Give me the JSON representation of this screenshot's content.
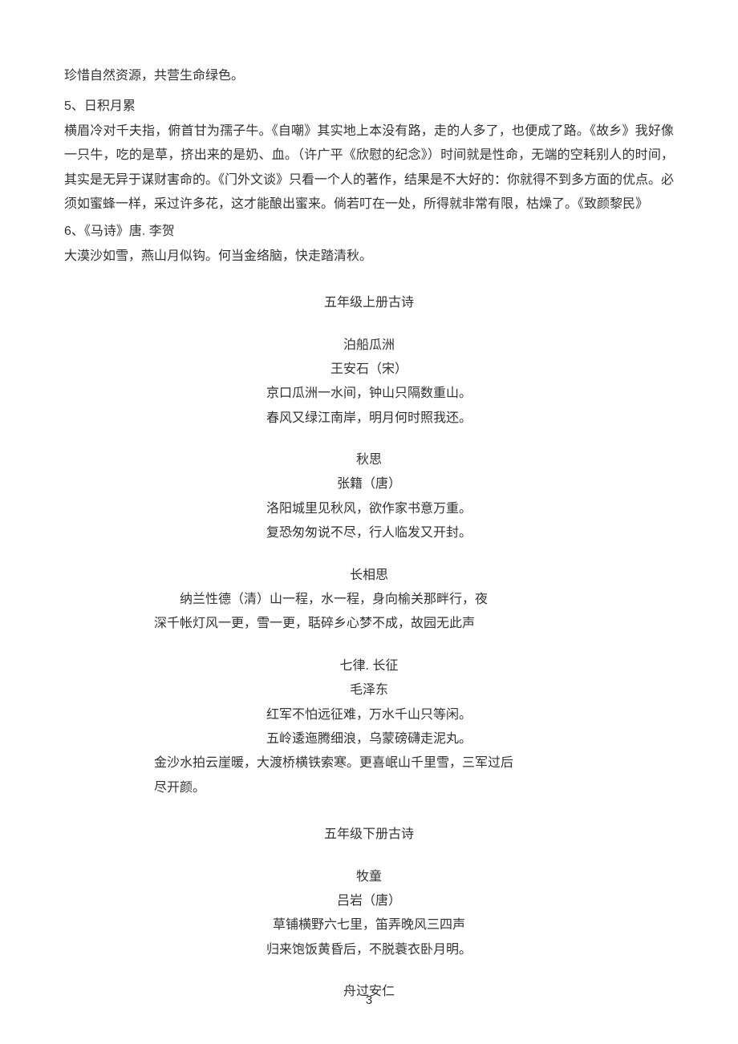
{
  "top_line": "珍惜自然资源，共营生命绿色。",
  "sec5": {
    "heading": "5、日积月累",
    "body": "横眉冷对千夫指，俯首甘为孺子牛。《自嘲》其实地上本没有路，走的人多了，也便成了路。《故乡》我好像一只牛，吃的是草，挤出来的是奶、血。（许广平《欣慰的纪念》）时间就是性命，无端的空耗别人的时间，其实是无异于谋财害命的。《门外文谈》只看一个人的著作，结果是不大好的：你就得不到多方面的优点。必须如蜜蜂一样，采过许多花，这才能酿出蜜来。倘若叮在一处，所得就非常有限，枯燥了。《致颜黎民》"
  },
  "sec6": {
    "heading": "6、《马诗》唐. 李贺",
    "line": "大漠沙如雪，燕山月似钩。何当金络脑，快走踏清秋。"
  },
  "grade5_top_title": "五年级上册古诗",
  "poem1": {
    "title": "泊船瓜洲",
    "author": "王安石（宋）",
    "l1": "京口瓜洲一水间，钟山只隔数重山。",
    "l2": "春风又绿江南岸，明月何时照我还。"
  },
  "poem2": {
    "title": "秋思",
    "author": "张籍（唐）",
    "l1": "洛阳城里见秋风，欲作家书意万重。",
    "l2": "复恐匆匆说不尽，行人临发又开封。"
  },
  "poem3": {
    "title": "长相思",
    "body1": "纳兰性德（清）山一程，水一程，身向榆关那畔行，夜",
    "body2": "深千帐灯风一更，雪一更，聒碎乡心梦不成，故园无此声"
  },
  "poem4": {
    "title": "七律. 长征",
    "author": "毛泽东",
    "l1": "红军不怕远征难，万水千山只等闲。",
    "l2": "五岭逶迤腾细浪，乌蒙磅礴走泥丸。",
    "l3a": "金沙水拍云崖暖，大渡桥横铁索寒。更喜岷山千里雪，三军过后",
    "l3b": "尽开颜。"
  },
  "grade5_bottom_title": "五年级下册古诗",
  "poem5": {
    "title": "牧童",
    "author": "吕岩（唐）",
    "l1": "草铺横野六七里，笛弄晚风三四声",
    "l2": "归来饱饭黄昏后，不脱蓑衣卧月明。"
  },
  "poem6": {
    "title": "舟过安仁"
  },
  "page_number": "3"
}
